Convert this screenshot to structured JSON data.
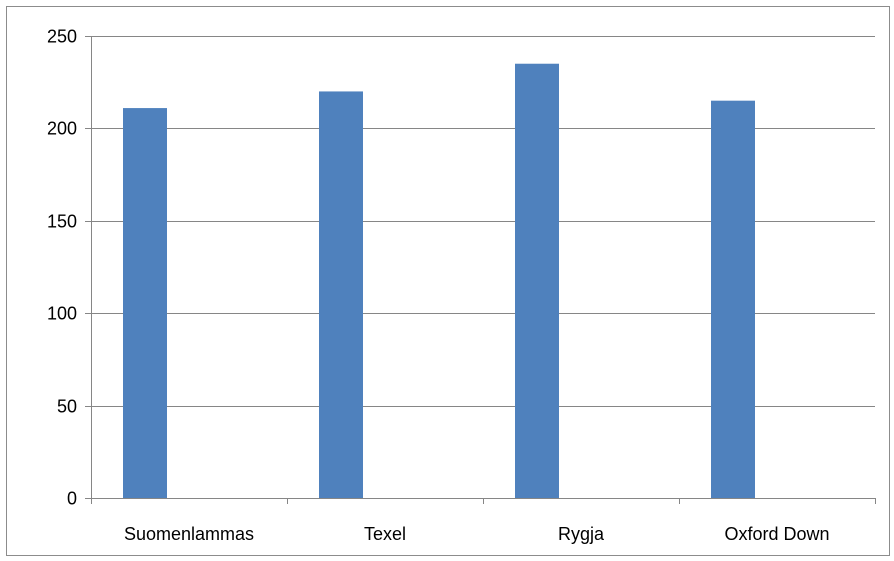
{
  "chart_data": {
    "type": "bar",
    "title": "",
    "xlabel": "",
    "ylabel": "",
    "categories": [
      "Suomenlammas",
      "Texel",
      "Rygja",
      "Oxford Down"
    ],
    "values": [
      211,
      220,
      235,
      215
    ],
    "ylim": [
      0,
      250
    ],
    "yticks": [
      0,
      50,
      100,
      150,
      200,
      250
    ],
    "ytick_labels": [
      "0",
      "50",
      "100",
      "150",
      "200",
      "250"
    ],
    "grid": true,
    "legend": "none",
    "bar_color": "#4f81bd",
    "grid_color": "#868686"
  }
}
